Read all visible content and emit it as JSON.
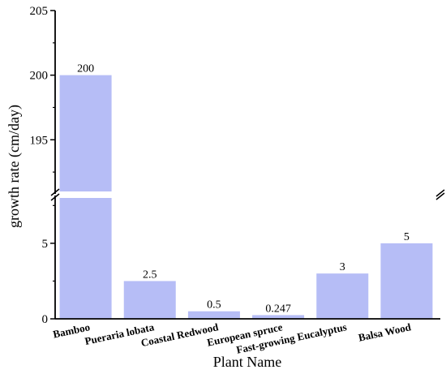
{
  "chart_data": {
    "type": "bar",
    "title": "",
    "xlabel": "Plant Name",
    "ylabel": "growth rate (cm/day)",
    "categories": [
      "Bamboo",
      "Pueraria lobata",
      "Coastal Redwood",
      "European spruce",
      "Fast-growing Eucalyptus",
      "Balsa Wood"
    ],
    "values": [
      200,
      2.5,
      0.5,
      0.247,
      3,
      5
    ],
    "data_labels": [
      "200",
      "2.5",
      "0.5",
      "0.247",
      "3",
      "5"
    ],
    "broken_axis": {
      "lower_range": [
        0,
        8
      ],
      "upper_range": [
        191,
        205
      ],
      "lower_ticks": [
        "0",
        "5"
      ],
      "upper_ticks": [
        "195",
        "200",
        "205"
      ]
    },
    "bar_color": "#b6bdf6",
    "grid": false,
    "legend": "none"
  }
}
